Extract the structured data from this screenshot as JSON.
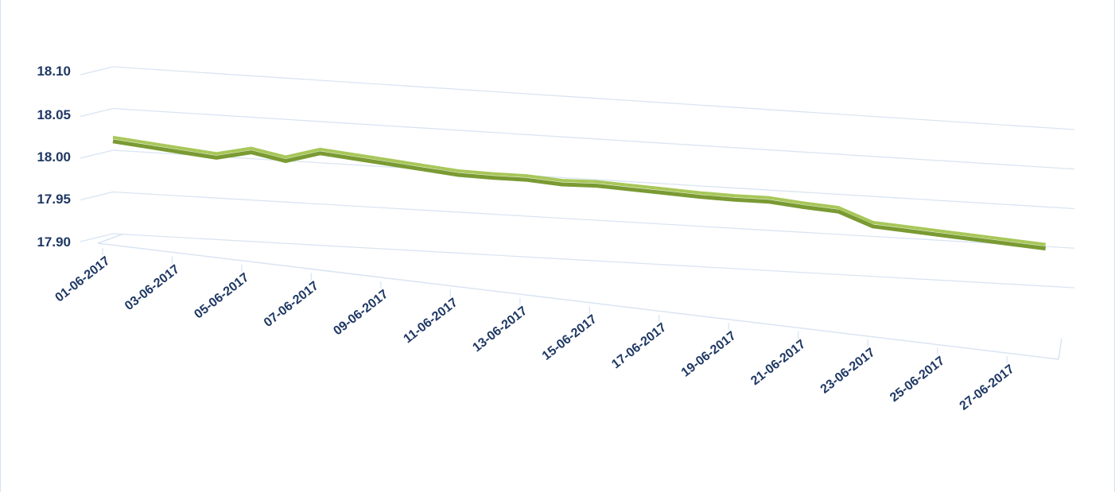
{
  "chart_data": {
    "type": "line",
    "title": "",
    "xlabel": "",
    "ylabel": "",
    "ylim": [
      17.9,
      18.1
    ],
    "yticks": [
      "18.10",
      "18.05",
      "18.00",
      "17.95",
      "17.90"
    ],
    "grid": true,
    "legend": "none",
    "x_tick_labels": [
      "01-06-2017",
      "03-06-2017",
      "05-06-2017",
      "07-06-2017",
      "09-06-2017",
      "11-06-2017",
      "13-06-2017",
      "15-06-2017",
      "17-06-2017",
      "19-06-2017",
      "21-06-2017",
      "23-06-2017",
      "25-06-2017",
      "27-06-2017"
    ],
    "x": [
      "01-06-2017",
      "02-06-2017",
      "03-06-2017",
      "04-06-2017",
      "05-06-2017",
      "06-06-2017",
      "07-06-2017",
      "08-06-2017",
      "09-06-2017",
      "10-06-2017",
      "11-06-2017",
      "12-06-2017",
      "13-06-2017",
      "14-06-2017",
      "15-06-2017",
      "16-06-2017",
      "17-06-2017",
      "18-06-2017",
      "19-06-2017",
      "20-06-2017",
      "21-06-2017",
      "22-06-2017",
      "23-06-2017",
      "24-06-2017",
      "25-06-2017",
      "26-06-2017",
      "27-06-2017",
      "28-06-2017"
    ],
    "series": [
      {
        "values": [
          18.013,
          18.009,
          18.005,
          18.001,
          18.01,
          18.002,
          18.014,
          18.01,
          18.006,
          18.002,
          17.998,
          17.997,
          17.997,
          17.994,
          17.995,
          17.993,
          17.991,
          17.989,
          17.988,
          17.988,
          17.984,
          17.981,
          17.965,
          17.962,
          17.959,
          17.956,
          17.953,
          17.95
        ],
        "color": "#7a9a33"
      }
    ],
    "colors": {
      "line": "#7a9a33",
      "line_highlight": "#a8c75a",
      "grid": "#d9e5f2",
      "text": "#1f3864"
    }
  }
}
